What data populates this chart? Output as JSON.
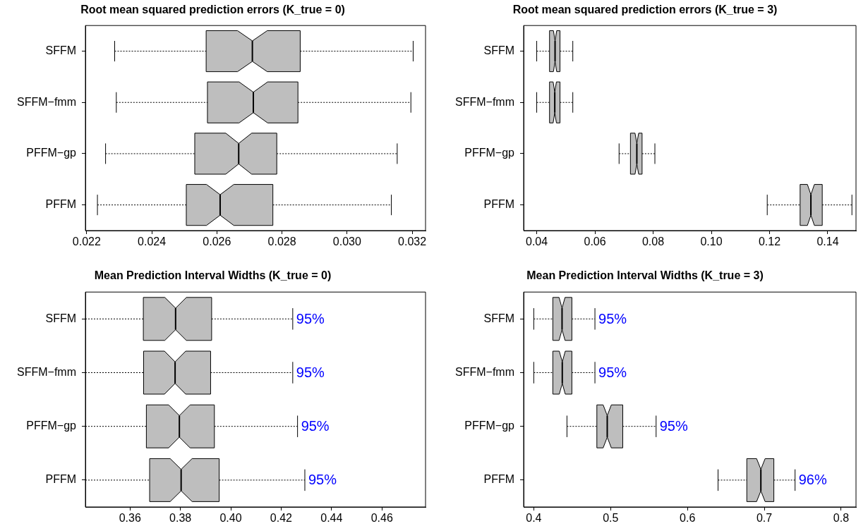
{
  "chart_data": [
    {
      "type": "box",
      "orientation": "horizontal",
      "title": "Root mean squared prediction errors (K_true = 0)",
      "categories": [
        "SFFM",
        "SFFM−fmm",
        "PFFM−gp",
        "PFFM"
      ],
      "color": "#bebebe",
      "grid": false,
      "legend": false,
      "xlim": [
        0.02196,
        0.03241
      ],
      "xticks": [
        {
          "value": 0.022,
          "label": "0.022"
        },
        {
          "value": 0.024,
          "label": "0.024"
        },
        {
          "value": 0.026,
          "label": "0.026"
        },
        {
          "value": 0.028,
          "label": "0.028"
        },
        {
          "value": 0.03,
          "label": "0.030"
        },
        {
          "value": 0.032,
          "label": "0.032"
        }
      ],
      "boxes": [
        {
          "low": 0.02286,
          "q1": 0.02567,
          "median": 0.02709,
          "q3": 0.02856,
          "high": 0.03203
        },
        {
          "low": 0.02291,
          "q1": 0.02571,
          "median": 0.02712,
          "q3": 0.02849,
          "high": 0.03196
        },
        {
          "low": 0.02258,
          "q1": 0.02532,
          "median": 0.02667,
          "q3": 0.02784,
          "high": 0.03154
        },
        {
          "low": 0.02233,
          "q1": 0.02506,
          "median": 0.0261,
          "q3": 0.02772,
          "high": 0.03136
        }
      ]
    },
    {
      "type": "box",
      "orientation": "horizontal",
      "title": "Root mean squared prediction errors (K_true = 3)",
      "categories": [
        "SFFM",
        "SFFM−fmm",
        "PFFM−gp",
        "PFFM"
      ],
      "color": "#bebebe",
      "grid": false,
      "legend": false,
      "xlim": [
        0.0355,
        0.1497
      ],
      "xticks": [
        {
          "value": 0.04,
          "label": "0.04"
        },
        {
          "value": 0.06,
          "label": "0.06"
        },
        {
          "value": 0.08,
          "label": "0.08"
        },
        {
          "value": 0.1,
          "label": "0.10"
        },
        {
          "value": 0.12,
          "label": "0.12"
        },
        {
          "value": 0.14,
          "label": "0.14"
        }
      ],
      "boxes": [
        {
          "low": 0.04,
          "q1": 0.0444,
          "median": 0.0463,
          "q3": 0.048,
          "high": 0.0524
        },
        {
          "low": 0.04,
          "q1": 0.0444,
          "median": 0.0462,
          "q3": 0.048,
          "high": 0.0524
        },
        {
          "low": 0.0683,
          "q1": 0.0722,
          "median": 0.0744,
          "q3": 0.0762,
          "high": 0.0806
        },
        {
          "low": 0.1192,
          "q1": 0.1305,
          "median": 0.1342,
          "q3": 0.1381,
          "high": 0.1483
        }
      ]
    },
    {
      "type": "box",
      "orientation": "horizontal",
      "title": "Mean Prediction Interval Widths (K_true = 0)",
      "categories": [
        "SFFM",
        "SFFM−fmm",
        "PFFM−gp",
        "PFFM"
      ],
      "color": "#bebebe",
      "grid": false,
      "legend": false,
      "xlim": [
        0.3423,
        0.4773
      ],
      "xticks": [
        {
          "value": 0.36,
          "label": "0.36"
        },
        {
          "value": 0.38,
          "label": "0.38"
        },
        {
          "value": 0.4,
          "label": "0.40"
        },
        {
          "value": 0.42,
          "label": "0.42"
        },
        {
          "value": 0.44,
          "label": "0.44"
        },
        {
          "value": 0.46,
          "label": "0.46"
        }
      ],
      "boxes": [
        {
          "low": 0.3423,
          "q1": 0.3653,
          "median": 0.3781,
          "q3": 0.3924,
          "high": 0.4246
        },
        {
          "low": 0.3423,
          "q1": 0.3654,
          "median": 0.3779,
          "q3": 0.392,
          "high": 0.4246
        },
        {
          "low": 0.3423,
          "q1": 0.3665,
          "median": 0.3796,
          "q3": 0.3935,
          "high": 0.4265
        },
        {
          "low": 0.3423,
          "q1": 0.3678,
          "median": 0.3803,
          "q3": 0.3954,
          "high": 0.4294
        }
      ],
      "annotations": [
        {
          "text": "95%",
          "x": 0.4246,
          "y": "SFFM"
        },
        {
          "text": "95%",
          "x": 0.4246,
          "y": "SFFM−fmm"
        },
        {
          "text": "95%",
          "x": 0.4265,
          "y": "PFFM−gp"
        },
        {
          "text": "95%",
          "x": 0.4294,
          "y": "PFFM"
        }
      ]
    },
    {
      "type": "box",
      "orientation": "horizontal",
      "title": "Mean Prediction Interval Widths (K_true = 3)",
      "categories": [
        "SFFM",
        "SFFM−fmm",
        "PFFM−gp",
        "PFFM"
      ],
      "color": "#bebebe",
      "grid": false,
      "legend": false,
      "xlim": [
        0.3868,
        0.8193
      ],
      "xticks": [
        0.4,
        0.5,
        0.6,
        0.7,
        0.8
      ],
      "boxes": [
        {
          "low": 0.4,
          "q1": 0.4248,
          "median": 0.4368,
          "q3": 0.4496,
          "high": 0.4796
        },
        {
          "low": 0.4,
          "q1": 0.4248,
          "median": 0.4371,
          "q3": 0.4496,
          "high": 0.4796
        },
        {
          "low": 0.4432,
          "q1": 0.4821,
          "median": 0.4956,
          "q3": 0.5158,
          "high": 0.5592
        },
        {
          "low": 0.6398,
          "q1": 0.6772,
          "median": 0.6955,
          "q3": 0.7124,
          "high": 0.74
        }
      ],
      "annotations": [
        {
          "text": "95%",
          "x": 0.4796,
          "y": "SFFM"
        },
        {
          "text": "95%",
          "x": 0.4796,
          "y": "SFFM−fmm"
        },
        {
          "text": "95%",
          "x": 0.5592,
          "y": "PFFM−gp"
        },
        {
          "text": "96%",
          "x": 0.74,
          "y": "PFFM"
        }
      ]
    }
  ]
}
